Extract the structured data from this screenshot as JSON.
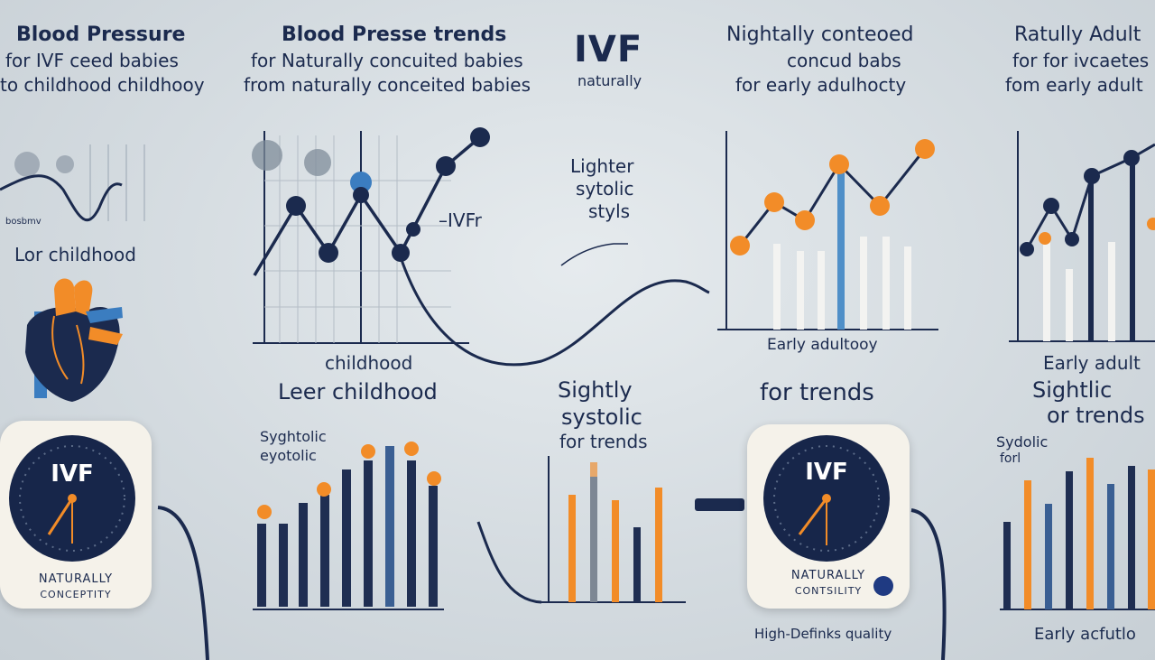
{
  "headings": {
    "col1": {
      "title": "Blood Pressure",
      "line2": "for IVF ceed babies",
      "line3": "to childhood childhooy"
    },
    "col2": {
      "title": "Blood Presse trends",
      "line2": "for Naturally concuited babies",
      "line3": "from naturally conceited babies"
    },
    "col3": {
      "title": "IVF",
      "sub": "naturally"
    },
    "col4": {
      "title": "Nightally conteoed",
      "line2": "concud babs",
      "line3": "for early adulhocty"
    },
    "col5": {
      "title": "Ratully Adult",
      "line2": "for for ivcaetes",
      "line3": "fom early adult"
    }
  },
  "labels": {
    "lor_childhood": "Lor childhood",
    "childhood": "childhood",
    "leer_childhood": "Leer childhood",
    "ivf_line": "–IVFr",
    "lighter": "Lighter",
    "sytolic": "sytolic",
    "styls": "styls",
    "sightly": "Sightly",
    "systolic": "systolic",
    "for_trends_mid": "for trends",
    "for_trends_big": "for trends",
    "early_adult_mid": "Early adultooy",
    "early_adult_right": "Early adult",
    "sightlic": "Sightlic",
    "or_trends": "or trends",
    "syghtolic": "Syghtolic",
    "eyotolic": "eyotolic",
    "sydolic": "Sydolic",
    "forl": "forl",
    "high_def": "High-Definks quality",
    "early_acfutlo": "Early acfutlo",
    "bonsh": "bosbmv"
  },
  "gauges": {
    "left": {
      "face": "IVF",
      "line1": "NATURALLY",
      "line2": "CONCEPTITY"
    },
    "right": {
      "face": "IVF",
      "line1": "NATURALLY",
      "line2": "CONTSILITY"
    }
  },
  "colors": {
    "navy": "#1b2a4e",
    "orange": "#f28c28",
    "blue": "#3b7dc0",
    "white_bar": "#f3f3f1"
  }
}
